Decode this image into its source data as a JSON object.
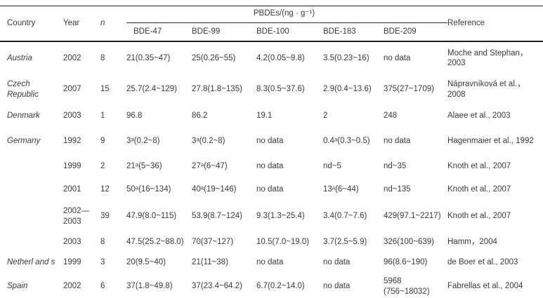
{
  "table": {
    "header": {
      "country": "Country",
      "year": "Year",
      "n": "n",
      "group": "PBDEs/(ng · g⁻¹)",
      "reference": "Reference",
      "congeners": [
        "BDE-47",
        "BDE-99",
        "BDE-100",
        "BDE-183",
        "BDE-209"
      ]
    },
    "rows": [
      {
        "country": "Austria",
        "year": "2002",
        "n": "8",
        "values": [
          "21(0.35~47)",
          "25(0.26~55)",
          "4.2(0.05~9.8)",
          "3.5(0.23~16)",
          "no data"
        ],
        "reference": "Moche and Stephan，2003"
      },
      {
        "country": "Czech Republic",
        "year": "2007",
        "n": "15",
        "values": [
          "25.7(2.4~129)",
          "27.8(1.8~135)",
          "8.3(0.5~37.6)",
          "2.9(0.4~13.6)",
          "375(27~1709)"
        ],
        "reference": "Nápravníková et al.，2008"
      },
      {
        "country": "Denmark",
        "year": "2003",
        "n": "1",
        "values": [
          "96.8",
          "86.2",
          "19.1",
          "2",
          "248"
        ],
        "reference": "Alaee et al., 2003"
      },
      {
        "country": "Germany",
        "year": "1992",
        "n": "9",
        "values": [
          "3ᵃ(0.2~8)",
          "3ᵃ(0.2~8)",
          "no data",
          "0.4ᵃ(0.3~0.5)",
          "no data"
        ],
        "reference": "Hagenmaier et al., 1992"
      },
      {
        "country": "",
        "year": "1999",
        "n": "2",
        "values": [
          "21ᵃ(5~36)",
          "27ᵃ(6~47)",
          "no data",
          "nd~5",
          "nd~35"
        ],
        "reference": "Knoth et al., 2007"
      },
      {
        "country": "",
        "year": "2001",
        "n": "12",
        "values": [
          "50ᵃ(16~134)",
          "40ᵃ(19~146)",
          "no data",
          "13ᵃ(6~44)",
          "nd~135"
        ],
        "reference": "Knoth et al., 2007"
      },
      {
        "country": "",
        "year": "2002—2003",
        "n": "39",
        "values": [
          "47.9(8.0~115)",
          "53.9(8.7~124)",
          "9.3(1.3~25.4)",
          "3.4(0.7~7.6)",
          "429(97.1~2217)"
        ],
        "reference": "Knoth et al., 2007"
      },
      {
        "country": "",
        "year": "2003",
        "n": "8",
        "values": [
          "47.5(25.2~88.0)",
          "70(37~127)",
          "10.5(7.0~19.0)",
          "3.7(2.5~5.9)",
          "326(100~639)"
        ],
        "reference": "Hamm，2004"
      },
      {
        "country": "Netherl and s",
        "year": "1999",
        "n": "3",
        "values": [
          "20(9.5~40)",
          "21(11~38)",
          "no data",
          "no data",
          "96(8.6~190)"
        ],
        "reference": "de Boer et al., 2003"
      },
      {
        "country": "Spain",
        "year": "2002",
        "n": "6",
        "values": [
          "37(1.8~49.8)",
          "37(23.4~64.2)",
          "6.7(0.2~14.0)",
          "no data",
          "5968 (756~18032)"
        ],
        "reference": "Fabrellas et al., 2004"
      }
    ]
  }
}
